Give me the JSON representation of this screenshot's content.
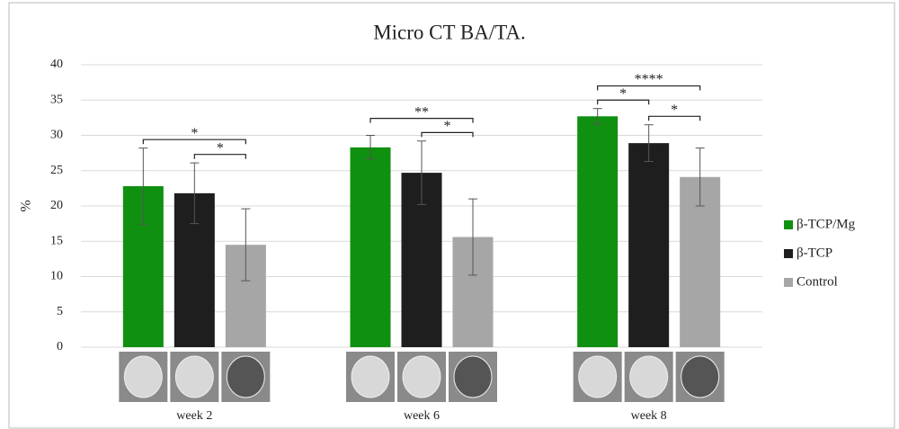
{
  "chart_data": {
    "type": "bar",
    "title": "Micro CT BA/TA.",
    "y_label": "%",
    "categories": [
      "week 2",
      "week 6",
      "week 8"
    ],
    "series": [
      {
        "name": "β-TCP/Mg",
        "color": "#109010",
        "values": [
          22.8,
          28.3,
          32.7
        ],
        "errors": [
          5.4,
          1.7,
          1.1
        ]
      },
      {
        "name": "β-TCP",
        "color": "#1e1e1e",
        "values": [
          21.8,
          24.7,
          28.9
        ],
        "errors": [
          4.3,
          4.5,
          2.6
        ]
      },
      {
        "name": "Control",
        "color": "#a6a6a6",
        "values": [
          14.5,
          15.6,
          24.1
        ],
        "errors": [
          5.1,
          5.4,
          4.1
        ]
      }
    ],
    "significance": [
      {
        "category": "week 2",
        "between": [
          "β-TCP/Mg",
          "Control"
        ],
        "label": "*"
      },
      {
        "category": "week 2",
        "between": [
          "β-TCP",
          "Control"
        ],
        "label": "*"
      },
      {
        "category": "week 6",
        "between": [
          "β-TCP/Mg",
          "Control"
        ],
        "label": "**"
      },
      {
        "category": "week 6",
        "between": [
          "β-TCP",
          "Control"
        ],
        "label": "*"
      },
      {
        "category": "week 8",
        "between": [
          "β-TCP/Mg",
          "β-TCP"
        ],
        "label": "*"
      },
      {
        "category": "week 8",
        "between": [
          "β-TCP/Mg",
          "Control"
        ],
        "label": "****"
      },
      {
        "category": "week 8",
        "between": [
          "β-TCP",
          "Control"
        ],
        "label": "*"
      }
    ],
    "ylim": [
      0,
      40
    ],
    "yticks": [
      0,
      5,
      10,
      15,
      20,
      25,
      30,
      35,
      40
    ],
    "grid": true,
    "legend": "right"
  }
}
